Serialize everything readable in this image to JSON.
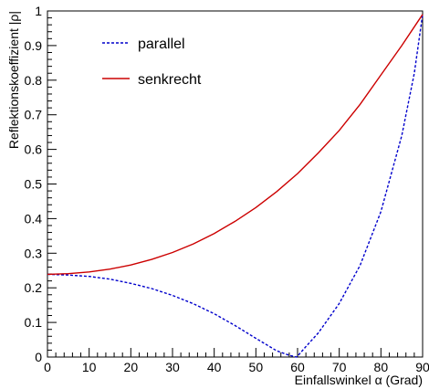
{
  "chart_data": {
    "type": "line",
    "xlabel": "Einfallswinkel α (Grad)",
    "ylabel": "Reflektionskoeffizient |ρ|",
    "xlim": [
      0,
      90
    ],
    "ylim": [
      0,
      1
    ],
    "x_ticks": [
      0,
      10,
      20,
      30,
      40,
      50,
      60,
      70,
      80,
      90
    ],
    "x_tick_labels": [
      "0",
      "10",
      "20",
      "30",
      "40",
      "50",
      "60",
      "70",
      "80",
      "90"
    ],
    "y_ticks": [
      0,
      0.1,
      0.2,
      0.3,
      0.4,
      0.5,
      0.6,
      0.7,
      0.8,
      0.9,
      1
    ],
    "y_tick_labels": [
      "0",
      "0.1",
      "0.2",
      "0.3",
      "0.4",
      "0.5",
      "0.6",
      "0.7",
      "0.8",
      "0.9",
      "1"
    ],
    "grid": false,
    "legend_position": "top-left",
    "series": [
      {
        "name": "parallel",
        "color": "#0000cc",
        "style": "dotted",
        "x": [
          0,
          5,
          10,
          15,
          20,
          25,
          30,
          35,
          40,
          45,
          50,
          55,
          58,
          59.8,
          62,
          65,
          70,
          75,
          80,
          85,
          88,
          90
        ],
        "y": [
          0.239,
          0.237,
          0.233,
          0.225,
          0.213,
          0.198,
          0.178,
          0.154,
          0.125,
          0.091,
          0.054,
          0.018,
          0.005,
          0.0,
          0.03,
          0.07,
          0.155,
          0.265,
          0.42,
          0.64,
          0.82,
          0.99
        ]
      },
      {
        "name": "senkrecht",
        "color": "#cc0000",
        "style": "solid",
        "x": [
          0,
          5,
          10,
          15,
          20,
          25,
          30,
          35,
          40,
          45,
          50,
          55,
          60,
          65,
          70,
          75,
          80,
          85,
          90
        ],
        "y": [
          0.239,
          0.241,
          0.246,
          0.254,
          0.266,
          0.282,
          0.302,
          0.327,
          0.357,
          0.392,
          0.432,
          0.478,
          0.53,
          0.59,
          0.655,
          0.73,
          0.815,
          0.9,
          0.99
        ]
      }
    ]
  }
}
